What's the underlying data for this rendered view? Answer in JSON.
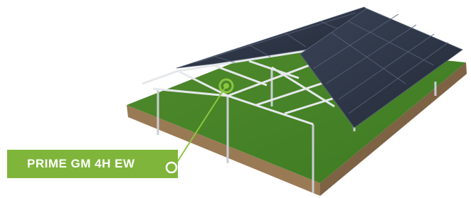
{
  "label": {
    "text": "PRIME GM 4H EW"
  }
}
